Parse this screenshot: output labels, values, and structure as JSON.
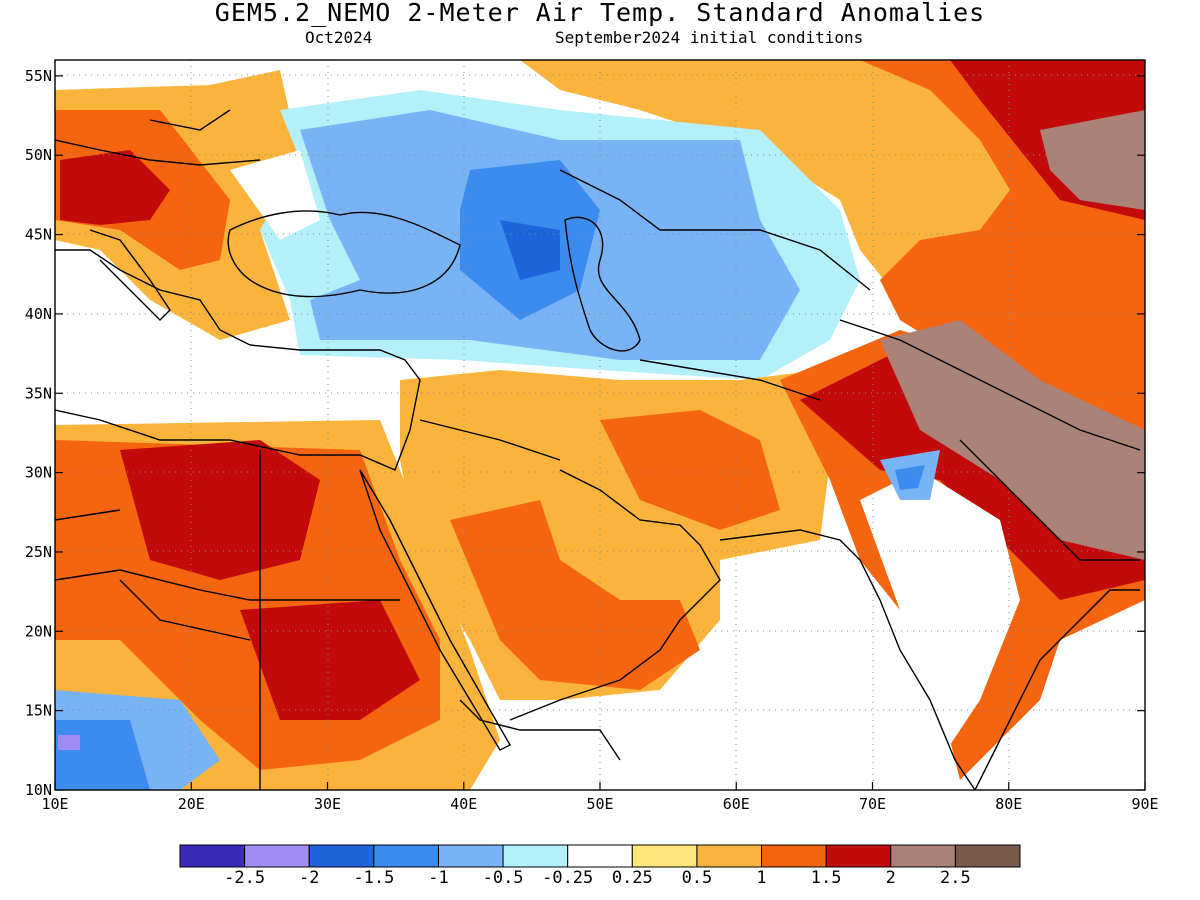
{
  "title": "GEM5.2_NEMO 2-Meter Air Temp. Standard Anomalies",
  "valid_month": "Oct2024",
  "init_label": "September2024 initial conditions",
  "map": {
    "lon_range": [
      10,
      90
    ],
    "lat_range": [
      10,
      56
    ],
    "lon_ticks": [
      "10E",
      "20E",
      "30E",
      "40E",
      "50E",
      "60E",
      "70E",
      "80E",
      "90E"
    ],
    "lat_ticks": [
      "10N",
      "15N",
      "20N",
      "25N",
      "30N",
      "35N",
      "40N",
      "45N",
      "50N",
      "55N"
    ],
    "grid": "dotted",
    "region": "Middle East, North-East Africa, South Asia"
  },
  "colorbar": {
    "colors": [
      "#3a2bb8",
      "#a08cf5",
      "#1e64dc",
      "#3c8cf0",
      "#78b4f5",
      "#b4f0fa",
      "#ffffff",
      "#ffe678",
      "#fab43c",
      "#f5640f",
      "#c30a0a",
      "#aa8278",
      "#785a4b"
    ],
    "labels": [
      "-2.5",
      "-2",
      "-1.5",
      "-1",
      "-0.5",
      "-0.25",
      "0.25",
      "0.5",
      "1",
      "1.5",
      "2",
      "2.5"
    ]
  }
}
